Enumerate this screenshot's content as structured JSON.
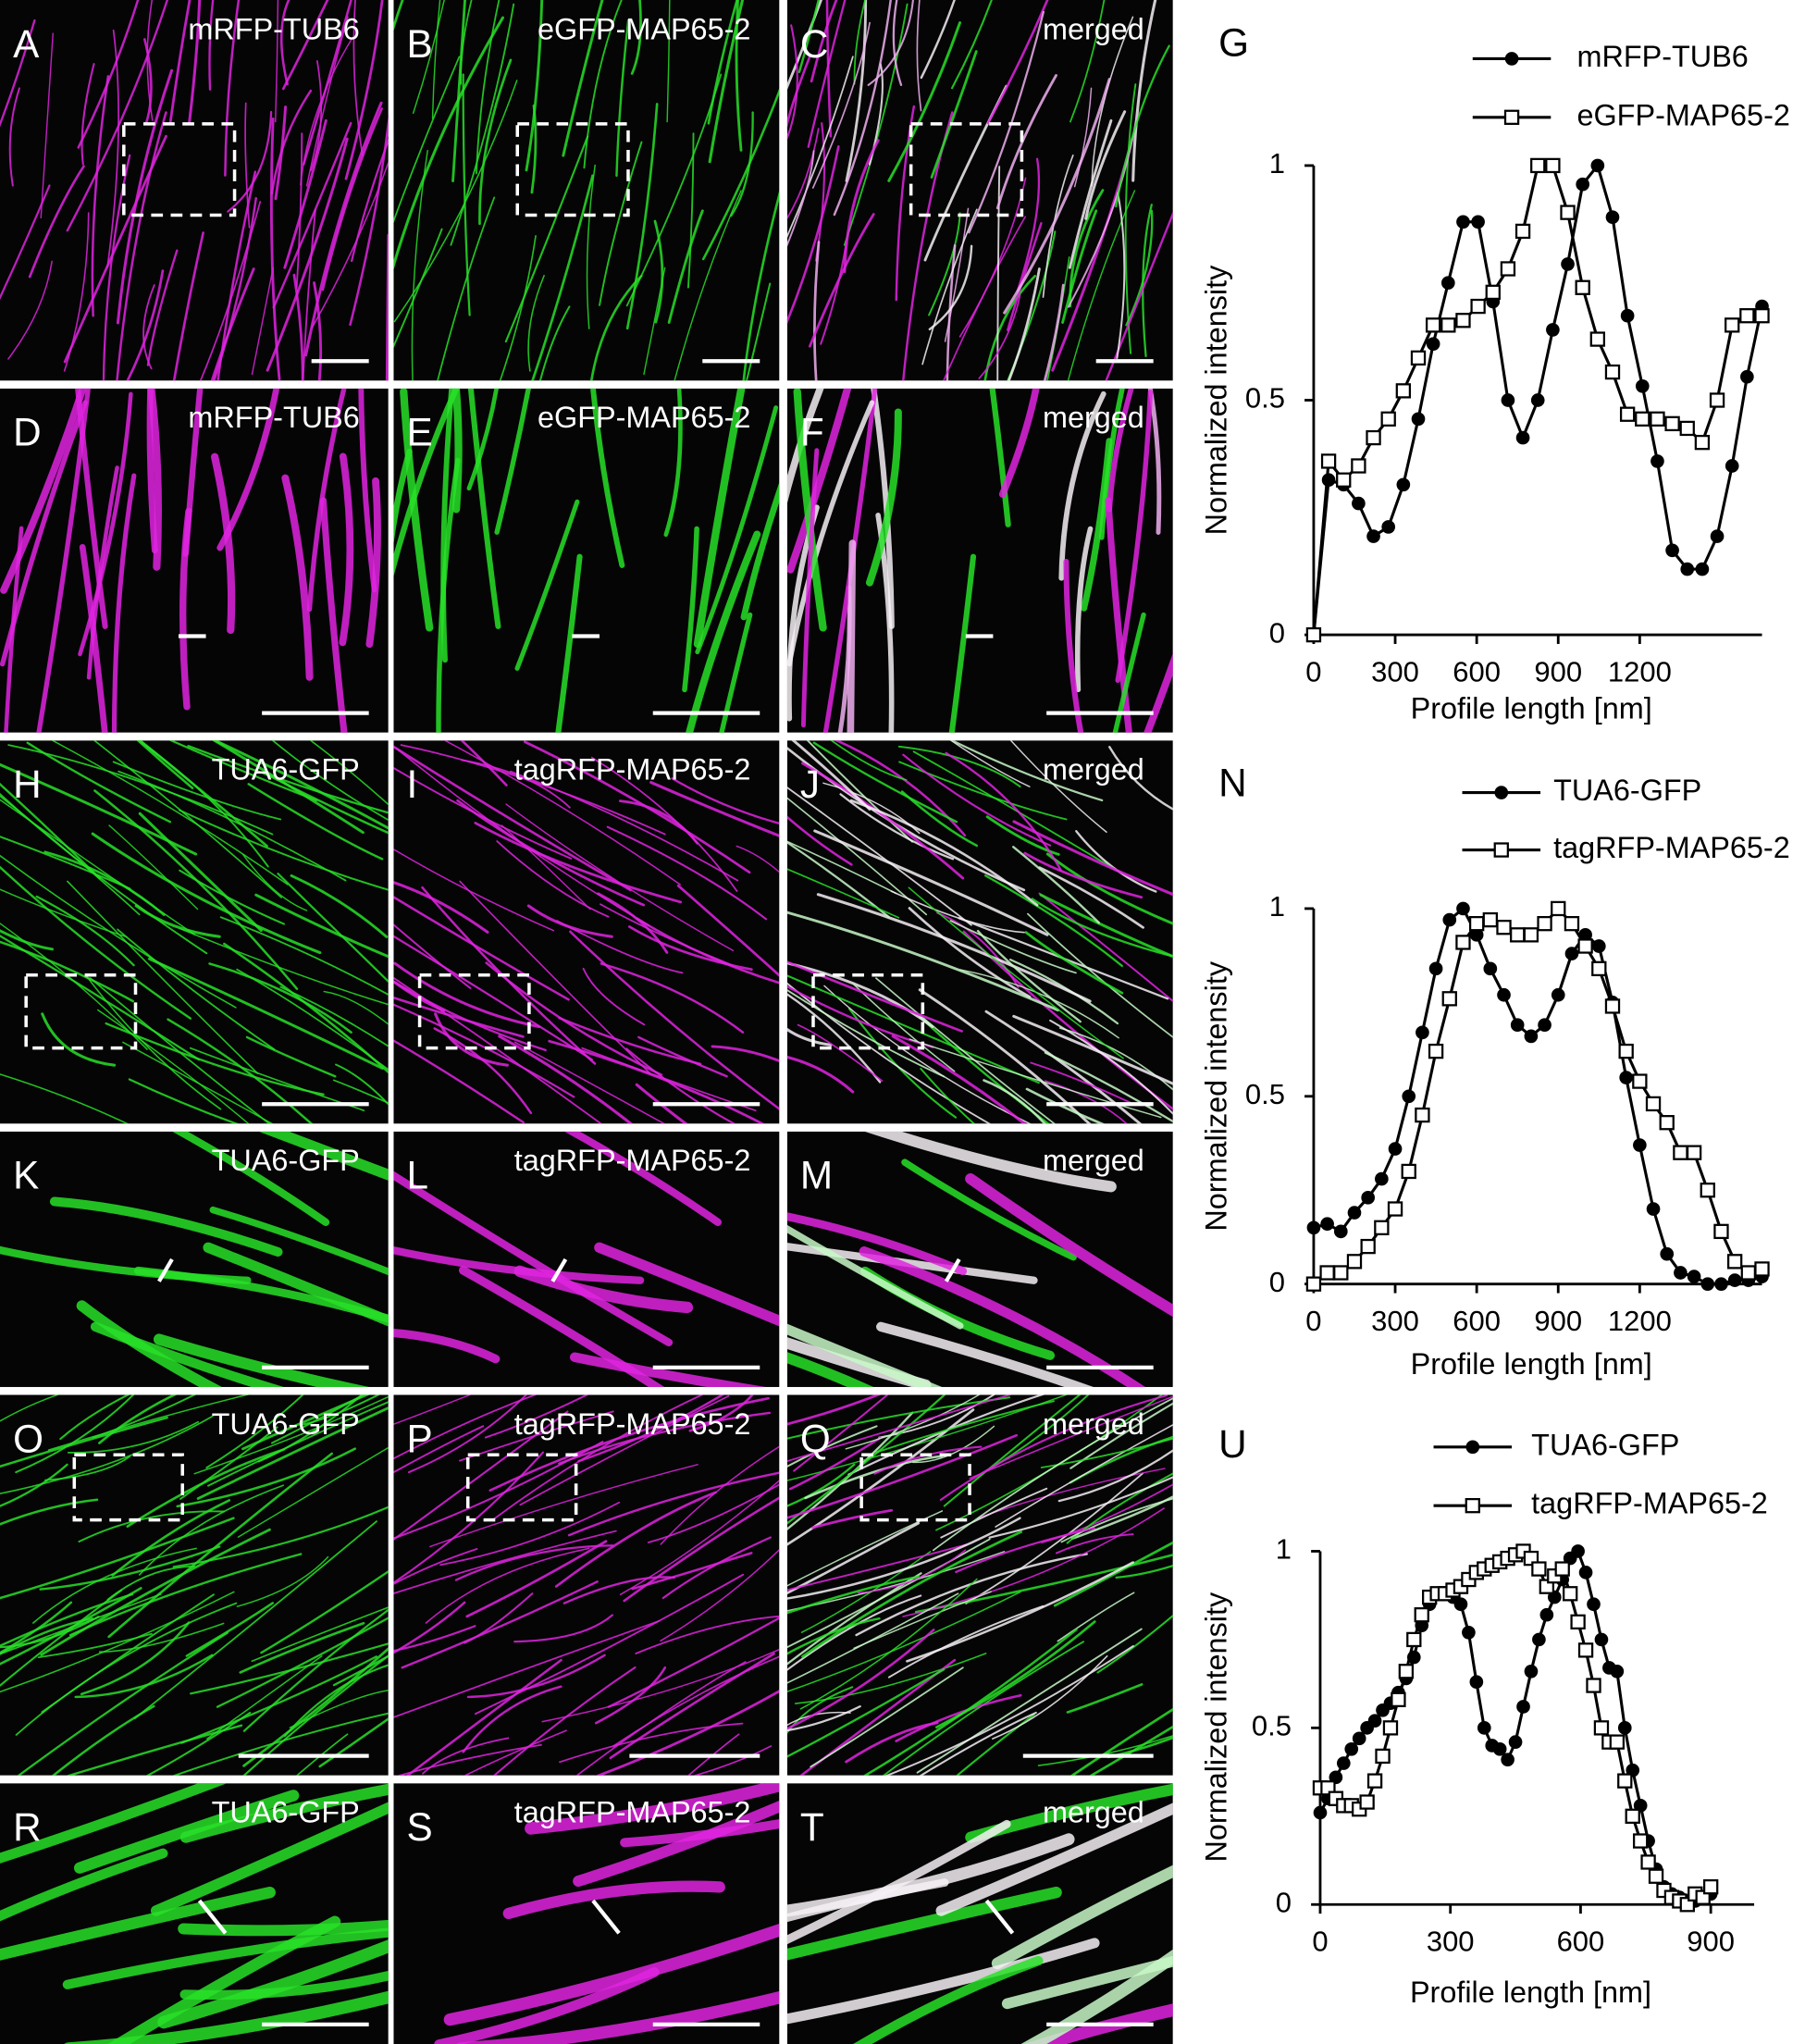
{
  "panels": [
    {
      "letter": "A",
      "label": "mRFP-TUB6"
    },
    {
      "letter": "B",
      "label": "eGFP-MAP65-2"
    },
    {
      "letter": "C",
      "label": "merged"
    },
    {
      "letter": "D",
      "label": "mRFP-TUB6"
    },
    {
      "letter": "E",
      "label": "eGFP-MAP65-2"
    },
    {
      "letter": "F",
      "label": "merged"
    },
    {
      "letter": "H",
      "label": "TUA6-GFP"
    },
    {
      "letter": "I",
      "label": "tagRFP-MAP65-2"
    },
    {
      "letter": "J",
      "label": "merged"
    },
    {
      "letter": "K",
      "label": "TUA6-GFP"
    },
    {
      "letter": "L",
      "label": "tagRFP-MAP65-2"
    },
    {
      "letter": "M",
      "label": "merged"
    },
    {
      "letter": "O",
      "label": "TUA6-GFP"
    },
    {
      "letter": "P",
      "label": "tagRFP-MAP65-2"
    },
    {
      "letter": "Q",
      "label": "merged"
    },
    {
      "letter": "R",
      "label": "TUA6-GFP"
    },
    {
      "letter": "S",
      "label": "tagRFP-MAP65-2"
    },
    {
      "letter": "T",
      "label": "merged"
    }
  ],
  "chart_data": [
    {
      "type": "line",
      "panel_label": "G",
      "x_label": "Profile length [nm]",
      "y_label": "Normalized intensity",
      "x": [
        0,
        55,
        110,
        165,
        220,
        275,
        330,
        385,
        440,
        495,
        550,
        605,
        660,
        715,
        770,
        825,
        880,
        935,
        990,
        1045,
        1100,
        1155,
        1210,
        1265,
        1320,
        1375,
        1430,
        1485,
        1540,
        1595,
        1650
      ],
      "series": [
        {
          "name": "mRFP-TUB6",
          "color": "#000000",
          "marker": "circle",
          "values": [
            0,
            0.33,
            0.32,
            0.28,
            0.21,
            0.23,
            0.32,
            0.46,
            0.62,
            0.75,
            0.88,
            0.88,
            0.71,
            0.5,
            0.42,
            0.5,
            0.65,
            0.79,
            0.96,
            1.0,
            0.89,
            0.68,
            0.53,
            0.37,
            0.18,
            0.14,
            0.14,
            0.21,
            0.36,
            0.55,
            0.7
          ]
        },
        {
          "name": "eGFP-MAP65-2",
          "color": "#000000",
          "marker": "square",
          "values": [
            0,
            0.37,
            0.33,
            0.36,
            0.42,
            0.46,
            0.52,
            0.59,
            0.66,
            0.66,
            0.67,
            0.7,
            0.73,
            0.78,
            0.86,
            1.0,
            1.0,
            0.9,
            0.74,
            0.63,
            0.56,
            0.47,
            0.46,
            0.46,
            0.45,
            0.44,
            0.41,
            0.5,
            0.66,
            0.68,
            0.68
          ]
        }
      ],
      "xlim": [
        0,
        1650
      ],
      "xticks": [
        0,
        300,
        600,
        900,
        1200
      ],
      "ylim": [
        0,
        1
      ],
      "yticks": [
        0,
        0.5,
        1
      ]
    },
    {
      "type": "line",
      "panel_label": "N",
      "x_label": "Profile length [nm]",
      "y_label": "Normalized intensity",
      "x": [
        0,
        50,
        100,
        150,
        200,
        250,
        300,
        350,
        400,
        450,
        500,
        550,
        600,
        650,
        700,
        750,
        800,
        850,
        900,
        950,
        1000,
        1050,
        1100,
        1150,
        1200,
        1250,
        1300,
        1350,
        1400,
        1450,
        1500,
        1550,
        1600,
        1650
      ],
      "series": [
        {
          "name": "TUA6-GFP",
          "color": "#000000",
          "marker": "circle",
          "values": [
            0.15,
            0.16,
            0.14,
            0.19,
            0.23,
            0.28,
            0.36,
            0.5,
            0.67,
            0.84,
            0.97,
            1.0,
            0.93,
            0.84,
            0.77,
            0.69,
            0.66,
            0.69,
            0.77,
            0.88,
            0.93,
            0.9,
            0.75,
            0.55,
            0.37,
            0.2,
            0.08,
            0.03,
            0.02,
            0,
            0,
            0.01,
            0.01,
            0.02
          ]
        },
        {
          "name": "tagRFP-MAP65-2",
          "color": "#000000",
          "marker": "square",
          "values": [
            0,
            0.03,
            0.03,
            0.06,
            0.1,
            0.15,
            0.2,
            0.3,
            0.45,
            0.62,
            0.76,
            0.91,
            0.96,
            0.97,
            0.95,
            0.93,
            0.93,
            0.96,
            1.0,
            0.96,
            0.9,
            0.84,
            0.74,
            0.62,
            0.54,
            0.48,
            0.43,
            0.35,
            0.35,
            0.25,
            0.14,
            0.06,
            0.03,
            0.04
          ]
        }
      ],
      "xlim": [
        0,
        1650
      ],
      "xticks": [
        0,
        300,
        600,
        900,
        1200
      ],
      "ylim": [
        0,
        1
      ],
      "yticks": [
        0,
        0.5,
        1
      ]
    },
    {
      "type": "line",
      "panel_label": "U",
      "x_label": "Profile length [nm]",
      "y_label": "Normalized intensity",
      "x": [
        0,
        18,
        36,
        54,
        72,
        90,
        108,
        126,
        144,
        162,
        180,
        198,
        216,
        234,
        252,
        270,
        288,
        306,
        324,
        342,
        360,
        378,
        396,
        414,
        432,
        450,
        468,
        486,
        504,
        522,
        540,
        558,
        576,
        594,
        612,
        630,
        648,
        666,
        684,
        702,
        720,
        738,
        756,
        774,
        792,
        810,
        828,
        846,
        864,
        882,
        900
      ],
      "series": [
        {
          "name": "TUA6-GFP",
          "color": "#000000",
          "marker": "circle",
          "values": [
            0.26,
            0.3,
            0.36,
            0.4,
            0.44,
            0.47,
            0.5,
            0.52,
            0.55,
            0.57,
            0.6,
            0.64,
            0.7,
            0.79,
            0.85,
            0.88,
            0.88,
            0.87,
            0.85,
            0.77,
            0.63,
            0.5,
            0.45,
            0.44,
            0.41,
            0.46,
            0.56,
            0.66,
            0.75,
            0.82,
            0.87,
            0.92,
            0.98,
            1.0,
            0.94,
            0.85,
            0.75,
            0.67,
            0.66,
            0.5,
            0.38,
            0.28,
            0.18,
            0.1,
            0.05,
            0.03,
            0.02,
            0.01,
            0.01,
            0.02,
            0.03
          ]
        },
        {
          "name": "tagRFP-MAP65-2",
          "color": "#000000",
          "marker": "square",
          "values": [
            0.33,
            0.33,
            0.3,
            0.28,
            0.28,
            0.27,
            0.29,
            0.35,
            0.42,
            0.5,
            0.58,
            0.66,
            0.75,
            0.82,
            0.87,
            0.88,
            0.88,
            0.89,
            0.9,
            0.92,
            0.94,
            0.95,
            0.96,
            0.97,
            0.98,
            0.99,
            1.0,
            0.98,
            0.95,
            0.9,
            0.93,
            0.95,
            0.88,
            0.8,
            0.72,
            0.62,
            0.5,
            0.46,
            0.46,
            0.35,
            0.25,
            0.18,
            0.12,
            0.08,
            0.04,
            0.02,
            0.01,
            0,
            0.03,
            0.02,
            0.05
          ]
        }
      ],
      "xlim": [
        0,
        1000
      ],
      "xticks": [
        0,
        300,
        600,
        900
      ],
      "ylim": [
        0,
        1
      ],
      "yticks": [
        0,
        0.5,
        1
      ]
    }
  ]
}
